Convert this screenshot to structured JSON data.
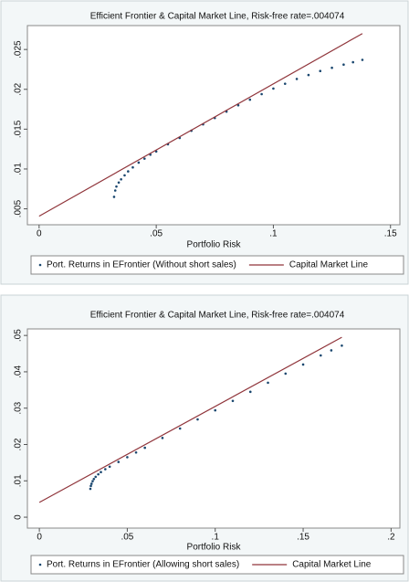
{
  "chart_data": [
    {
      "type": "scatter",
      "title": "Efficient Frontier & Capital Market Line, Risk-free rate=.004074",
      "xlabel": "Portfolio Risk",
      "xlim": [
        -0.005,
        0.154
      ],
      "xticks": [
        0,
        {
          "value": 0.05,
          "label": ".05"
        },
        {
          "value": 0.1,
          "label": ".1"
        },
        {
          "value": 0.15,
          "label": ".15"
        }
      ],
      "ylim": [
        0.003,
        0.028
      ],
      "yticks": [
        {
          "value": 0.005,
          "label": ".005"
        },
        {
          "value": 0.01,
          "label": ".01"
        },
        {
          "value": 0.015,
          "label": ".015"
        },
        {
          "value": 0.02,
          "label": ".02"
        },
        {
          "value": 0.025,
          "label": ".025"
        }
      ],
      "series": [
        {
          "name": "Port. Returns in EFrontier (Without short sales)",
          "color": "#1a476f",
          "style": "markers",
          "x": [
            0.032,
            0.0325,
            0.033,
            0.034,
            0.035,
            0.0365,
            0.038,
            0.04,
            0.0425,
            0.045,
            0.0475,
            0.05,
            0.055,
            0.06,
            0.065,
            0.07,
            0.075,
            0.08,
            0.085,
            0.09,
            0.095,
            0.1,
            0.105,
            0.11,
            0.115,
            0.12,
            0.125,
            0.13,
            0.134,
            0.138
          ],
          "values": [
            0.0065,
            0.0073,
            0.0078,
            0.0083,
            0.0087,
            0.0092,
            0.0097,
            0.0102,
            0.0108,
            0.0113,
            0.0118,
            0.0122,
            0.0131,
            0.0139,
            0.0148,
            0.0156,
            0.0164,
            0.0172,
            0.018,
            0.0187,
            0.0194,
            0.0201,
            0.0207,
            0.0213,
            0.0218,
            0.0223,
            0.0227,
            0.0231,
            0.0234,
            0.0237
          ]
        },
        {
          "name": "Capital Market Line",
          "color": "#90353b",
          "style": "line",
          "x": [
            0,
            0.138
          ],
          "values": [
            0.004074,
            0.027
          ]
        }
      ]
    },
    {
      "type": "scatter",
      "title": "Efficient Frontier & Capital Market Line, Risk-free rate=.004074",
      "xlabel": "Portfolio Risk",
      "xlim": [
        -0.0068,
        0.205
      ],
      "xticks": [
        0,
        {
          "value": 0.05,
          "label": ".05"
        },
        {
          "value": 0.1,
          "label": ".1"
        },
        {
          "value": 0.15,
          "label": ".15"
        },
        {
          "value": 0.2,
          "label": ".2"
        }
      ],
      "ylim": [
        -0.003,
        0.0518
      ],
      "yticks": [
        0,
        {
          "value": 0.01,
          "label": ".01"
        },
        {
          "value": 0.02,
          "label": ".02"
        },
        {
          "value": 0.03,
          "label": ".03"
        },
        {
          "value": 0.04,
          "label": ".04"
        },
        {
          "value": 0.05,
          "label": ".05"
        }
      ],
      "series": [
        {
          "name": "Port. Returns in EFrontier (Allowing short sales)",
          "color": "#1a476f",
          "style": "markers",
          "x": [
            0.029,
            0.0293,
            0.0297,
            0.0303,
            0.031,
            0.032,
            0.0335,
            0.035,
            0.0375,
            0.04,
            0.045,
            0.05,
            0.055,
            0.06,
            0.07,
            0.08,
            0.09,
            0.1,
            0.11,
            0.12,
            0.13,
            0.14,
            0.15,
            0.16,
            0.166,
            0.172
          ],
          "values": [
            0.0078,
            0.0086,
            0.0092,
            0.0099,
            0.0105,
            0.0111,
            0.0118,
            0.0124,
            0.0132,
            0.0139,
            0.0152,
            0.0165,
            0.0178,
            0.0191,
            0.0218,
            0.0244,
            0.0269,
            0.0294,
            0.032,
            0.0345,
            0.037,
            0.0395,
            0.042,
            0.0445,
            0.0459,
            0.0472
          ]
        },
        {
          "name": "Capital Market Line",
          "color": "#90353b",
          "style": "line",
          "x": [
            0,
            0.172
          ],
          "values": [
            0.004074,
            0.0495
          ]
        }
      ]
    }
  ]
}
